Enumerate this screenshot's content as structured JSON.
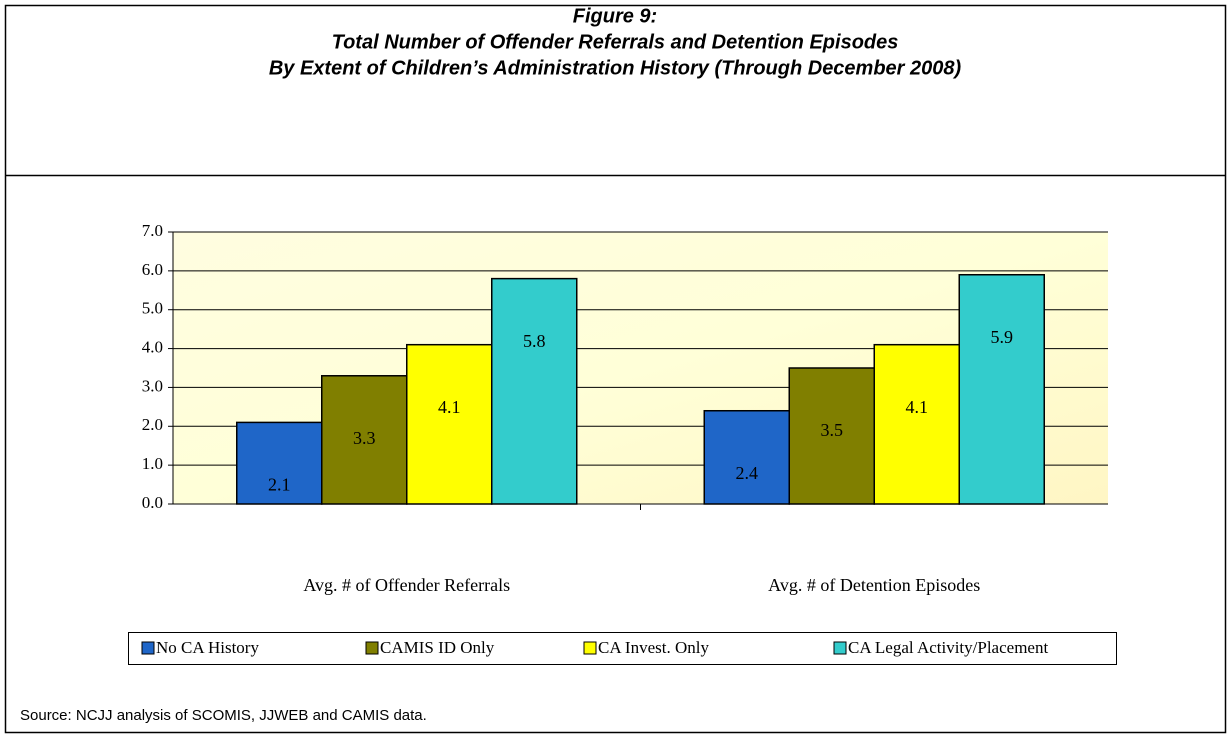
{
  "chart_data": {
    "type": "bar",
    "title_lines": [
      "Figure 9:",
      "Total Number of Offender Referrals and Detention Episodes",
      "By Extent of Children’s Administration History (Through December 2008)"
    ],
    "categories": [
      "Avg. # of Offender Referrals",
      "Avg. # of Detention Episodes"
    ],
    "series": [
      {
        "name": "No CA History",
        "color": "#1f66c8",
        "values": [
          2.1,
          2.4
        ]
      },
      {
        "name": "CAMIS ID Only",
        "color": "#807f00",
        "values": [
          3.3,
          3.5
        ]
      },
      {
        "name": "CA Invest. Only",
        "color": "#ffff00",
        "values": [
          4.1,
          4.1
        ]
      },
      {
        "name": "CA Legal Activity/Placement",
        "color": "#33cccc",
        "values": [
          5.8,
          5.9
        ]
      }
    ],
    "ylim": [
      0,
      7
    ],
    "yticks": [
      {
        "value": 0,
        "label": "0.0"
      },
      {
        "value": 1,
        "label": "1.0"
      },
      {
        "value": 2,
        "label": "2.0"
      },
      {
        "value": 3,
        "label": "3.0"
      },
      {
        "value": 4,
        "label": "4.0"
      },
      {
        "value": 5,
        "label": "5.0"
      },
      {
        "value": 6,
        "label": "6.0"
      },
      {
        "value": 7,
        "label": "7.0"
      }
    ],
    "grid": true,
    "legend": "bottom",
    "source": "Source: NCJJ analysis of SCOMIS, JJWEB and CAMIS data."
  }
}
